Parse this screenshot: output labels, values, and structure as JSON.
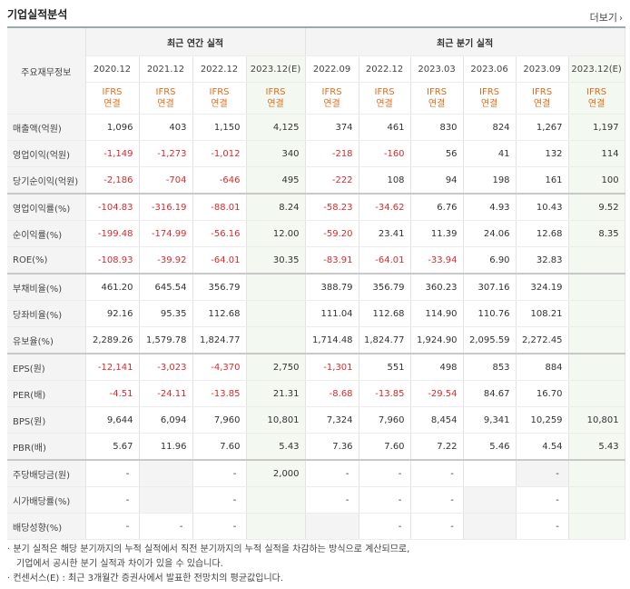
{
  "title": "기업실적분석",
  "more_label": "더보기",
  "corner_label": "주요재무정보",
  "annual_header": "최근 연간 실적",
  "quarter_header": "최근 분기 실적",
  "periods": [
    "2020.12",
    "2021.12",
    "2022.12",
    "2023.12(E)",
    "2022.09",
    "2022.12",
    "2023.03",
    "2023.06",
    "2023.09",
    "2023.12(E)"
  ],
  "ifrs_top": "IFRS",
  "ifrs_bottom": "연결",
  "rows": [
    {
      "label": "매출액(억원)",
      "values": [
        "1,096",
        "403",
        "1,150",
        "4,125",
        "374",
        "461",
        "830",
        "824",
        "1,267",
        "1,197"
      ]
    },
    {
      "label": "영업이익(억원)",
      "values": [
        "-1,149",
        "-1,273",
        "-1,012",
        "340",
        "-218",
        "-160",
        "56",
        "41",
        "132",
        "114"
      ]
    },
    {
      "label": "당기순이익(억원)",
      "values": [
        "-2,186",
        "-704",
        "-646",
        "495",
        "-222",
        "108",
        "94",
        "198",
        "161",
        "100"
      ]
    },
    {
      "label": "영업이익률(%)",
      "values": [
        "-104.83",
        "-316.19",
        "-88.01",
        "8.24",
        "-58.23",
        "-34.62",
        "6.76",
        "4.93",
        "10.43",
        "9.52"
      ]
    },
    {
      "label": "순이익률(%)",
      "values": [
        "-199.48",
        "-174.99",
        "-56.16",
        "12.00",
        "-59.20",
        "23.41",
        "11.39",
        "24.06",
        "12.68",
        "8.35"
      ]
    },
    {
      "label": "ROE(%)",
      "values": [
        "-108.93",
        "-39.92",
        "-64.01",
        "30.35",
        "-83.91",
        "-64.01",
        "-33.94",
        "6.90",
        "32.83",
        ""
      ]
    },
    {
      "label": "부채비율(%)",
      "values": [
        "461.20",
        "645.54",
        "356.79",
        "",
        "388.79",
        "356.79",
        "360.23",
        "307.16",
        "324.19",
        ""
      ]
    },
    {
      "label": "당좌비율(%)",
      "values": [
        "92.16",
        "95.35",
        "112.68",
        "",
        "111.04",
        "112.68",
        "114.90",
        "110.76",
        "108.21",
        ""
      ]
    },
    {
      "label": "유보율(%)",
      "values": [
        "2,289.26",
        "1,579.78",
        "1,824.77",
        "",
        "1,714.48",
        "1,824.77",
        "1,924.90",
        "2,095.59",
        "2,272.45",
        ""
      ]
    },
    {
      "label": "EPS(원)",
      "values": [
        "-12,141",
        "-3,023",
        "-4,370",
        "2,750",
        "-1,301",
        "551",
        "498",
        "853",
        "884",
        ""
      ]
    },
    {
      "label": "PER(배)",
      "values": [
        "-4.51",
        "-24.11",
        "-13.85",
        "21.31",
        "-8.68",
        "-13.85",
        "-29.54",
        "84.67",
        "16.70",
        ""
      ]
    },
    {
      "label": "BPS(원)",
      "values": [
        "9,644",
        "6,094",
        "7,960",
        "10,801",
        "7,324",
        "7,960",
        "8,454",
        "9,341",
        "10,259",
        "10,801"
      ]
    },
    {
      "label": "PBR(배)",
      "values": [
        "5.67",
        "11.96",
        "7.60",
        "5.43",
        "7.36",
        "7.60",
        "7.22",
        "5.46",
        "4.54",
        "5.43"
      ]
    },
    {
      "label": "주당배당금(원)",
      "values": [
        "-",
        "",
        "-",
        "2,000",
        "-",
        "-",
        "-",
        "",
        "-",
        ""
      ]
    },
    {
      "label": "시가배당률(%)",
      "values": [
        "-",
        "",
        "-",
        "",
        "-",
        "-",
        "-",
        "",
        "-",
        ""
      ]
    },
    {
      "label": "배당성향(%)",
      "values": [
        "-",
        "-",
        "-",
        "",
        "",
        "-",
        "-",
        "",
        "-",
        ""
      ]
    }
  ],
  "notes": [
    "· 분기 실적은 해당 분기까지의 누적 실적에서 직전 분기까지의 누적 실적을 차감하는 방식으로 계산되므로,",
    "기업에서 공시한 분기 실적과 차이가 있을 수 있습니다.",
    "· 컨센서스(E) : 최근 3개월간 증권사에서 발표한 전망치의 평균값입니다."
  ],
  "colors": {
    "negative": "#d92b2b",
    "accent": "#e06c1a",
    "estimate_bg": "#f3f8f1",
    "header_bg": "#f4f4f4"
  }
}
